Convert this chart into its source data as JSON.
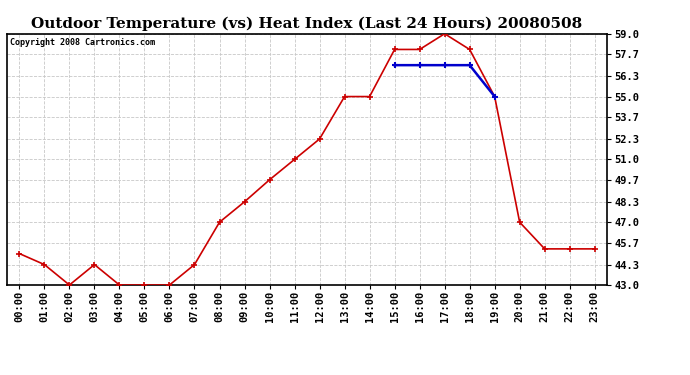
{
  "title": "Outdoor Temperature (vs) Heat Index (Last 24 Hours) 20080508",
  "copyright": "Copyright 2008 Cartronics.com",
  "hours": [
    "00:00",
    "01:00",
    "02:00",
    "03:00",
    "04:00",
    "05:00",
    "06:00",
    "07:00",
    "08:00",
    "09:00",
    "10:00",
    "11:00",
    "12:00",
    "13:00",
    "14:00",
    "15:00",
    "16:00",
    "17:00",
    "18:00",
    "19:00",
    "20:00",
    "21:00",
    "22:00",
    "23:00"
  ],
  "temp": [
    45.0,
    44.3,
    43.0,
    44.3,
    43.0,
    43.0,
    43.0,
    44.3,
    47.0,
    48.3,
    49.7,
    51.0,
    52.3,
    55.0,
    55.0,
    58.0,
    58.0,
    59.0,
    58.0,
    55.0,
    47.0,
    45.3,
    45.3,
    45.3
  ],
  "heat_index": [
    null,
    null,
    null,
    null,
    null,
    null,
    null,
    null,
    null,
    null,
    null,
    null,
    null,
    null,
    null,
    57.0,
    57.0,
    57.0,
    57.0,
    55.0,
    null,
    null,
    null,
    null
  ],
  "ylim_min": 43.0,
  "ylim_max": 59.0,
  "yticks": [
    43.0,
    44.3,
    45.7,
    47.0,
    48.3,
    49.7,
    51.0,
    52.3,
    53.7,
    55.0,
    56.3,
    57.7,
    59.0
  ],
  "temp_color": "#cc0000",
  "heat_index_color": "#0000cc",
  "grid_color": "#c8c8c8",
  "bg_color": "#ffffff",
  "title_fontsize": 11,
  "tick_fontsize": 7.5,
  "copyright_fontsize": 6
}
